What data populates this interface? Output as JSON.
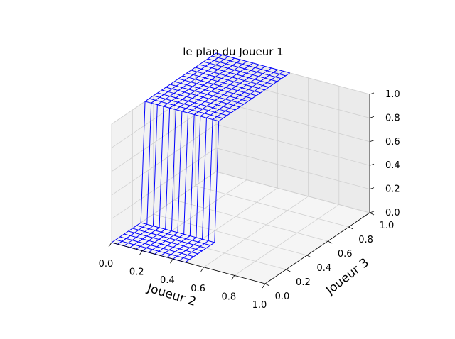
{
  "chart_data": {
    "type": "surface-wireframe-3d",
    "title": "le plan du Joueur 1",
    "xlabel": "Joueur 2",
    "ylabel": "Joueur 3",
    "zlabel": "",
    "xlim": [
      0,
      1
    ],
    "ylim": [
      0,
      1
    ],
    "zlim": [
      0,
      1
    ],
    "x_ticks": [
      "0.0",
      "0.2",
      "0.4",
      "0.6",
      "0.8",
      "1.0"
    ],
    "y_ticks": [
      "0.0",
      "0.2",
      "0.4",
      "0.6",
      "0.8",
      "1.0"
    ],
    "z_ticks": [
      "0.0",
      "0.2",
      "0.4",
      "0.6",
      "0.8",
      "1.0"
    ],
    "grid": true,
    "wire_color": "#0000ff",
    "surface": {
      "x_range": [
        0.0,
        0.5
      ],
      "y_range": [
        0.0,
        1.0
      ],
      "step": 0.04,
      "description_rule": "z = 1 when y > x_threshold else 0",
      "low_value": 0,
      "high_value": 1,
      "threshold_y": 0.3
    }
  }
}
